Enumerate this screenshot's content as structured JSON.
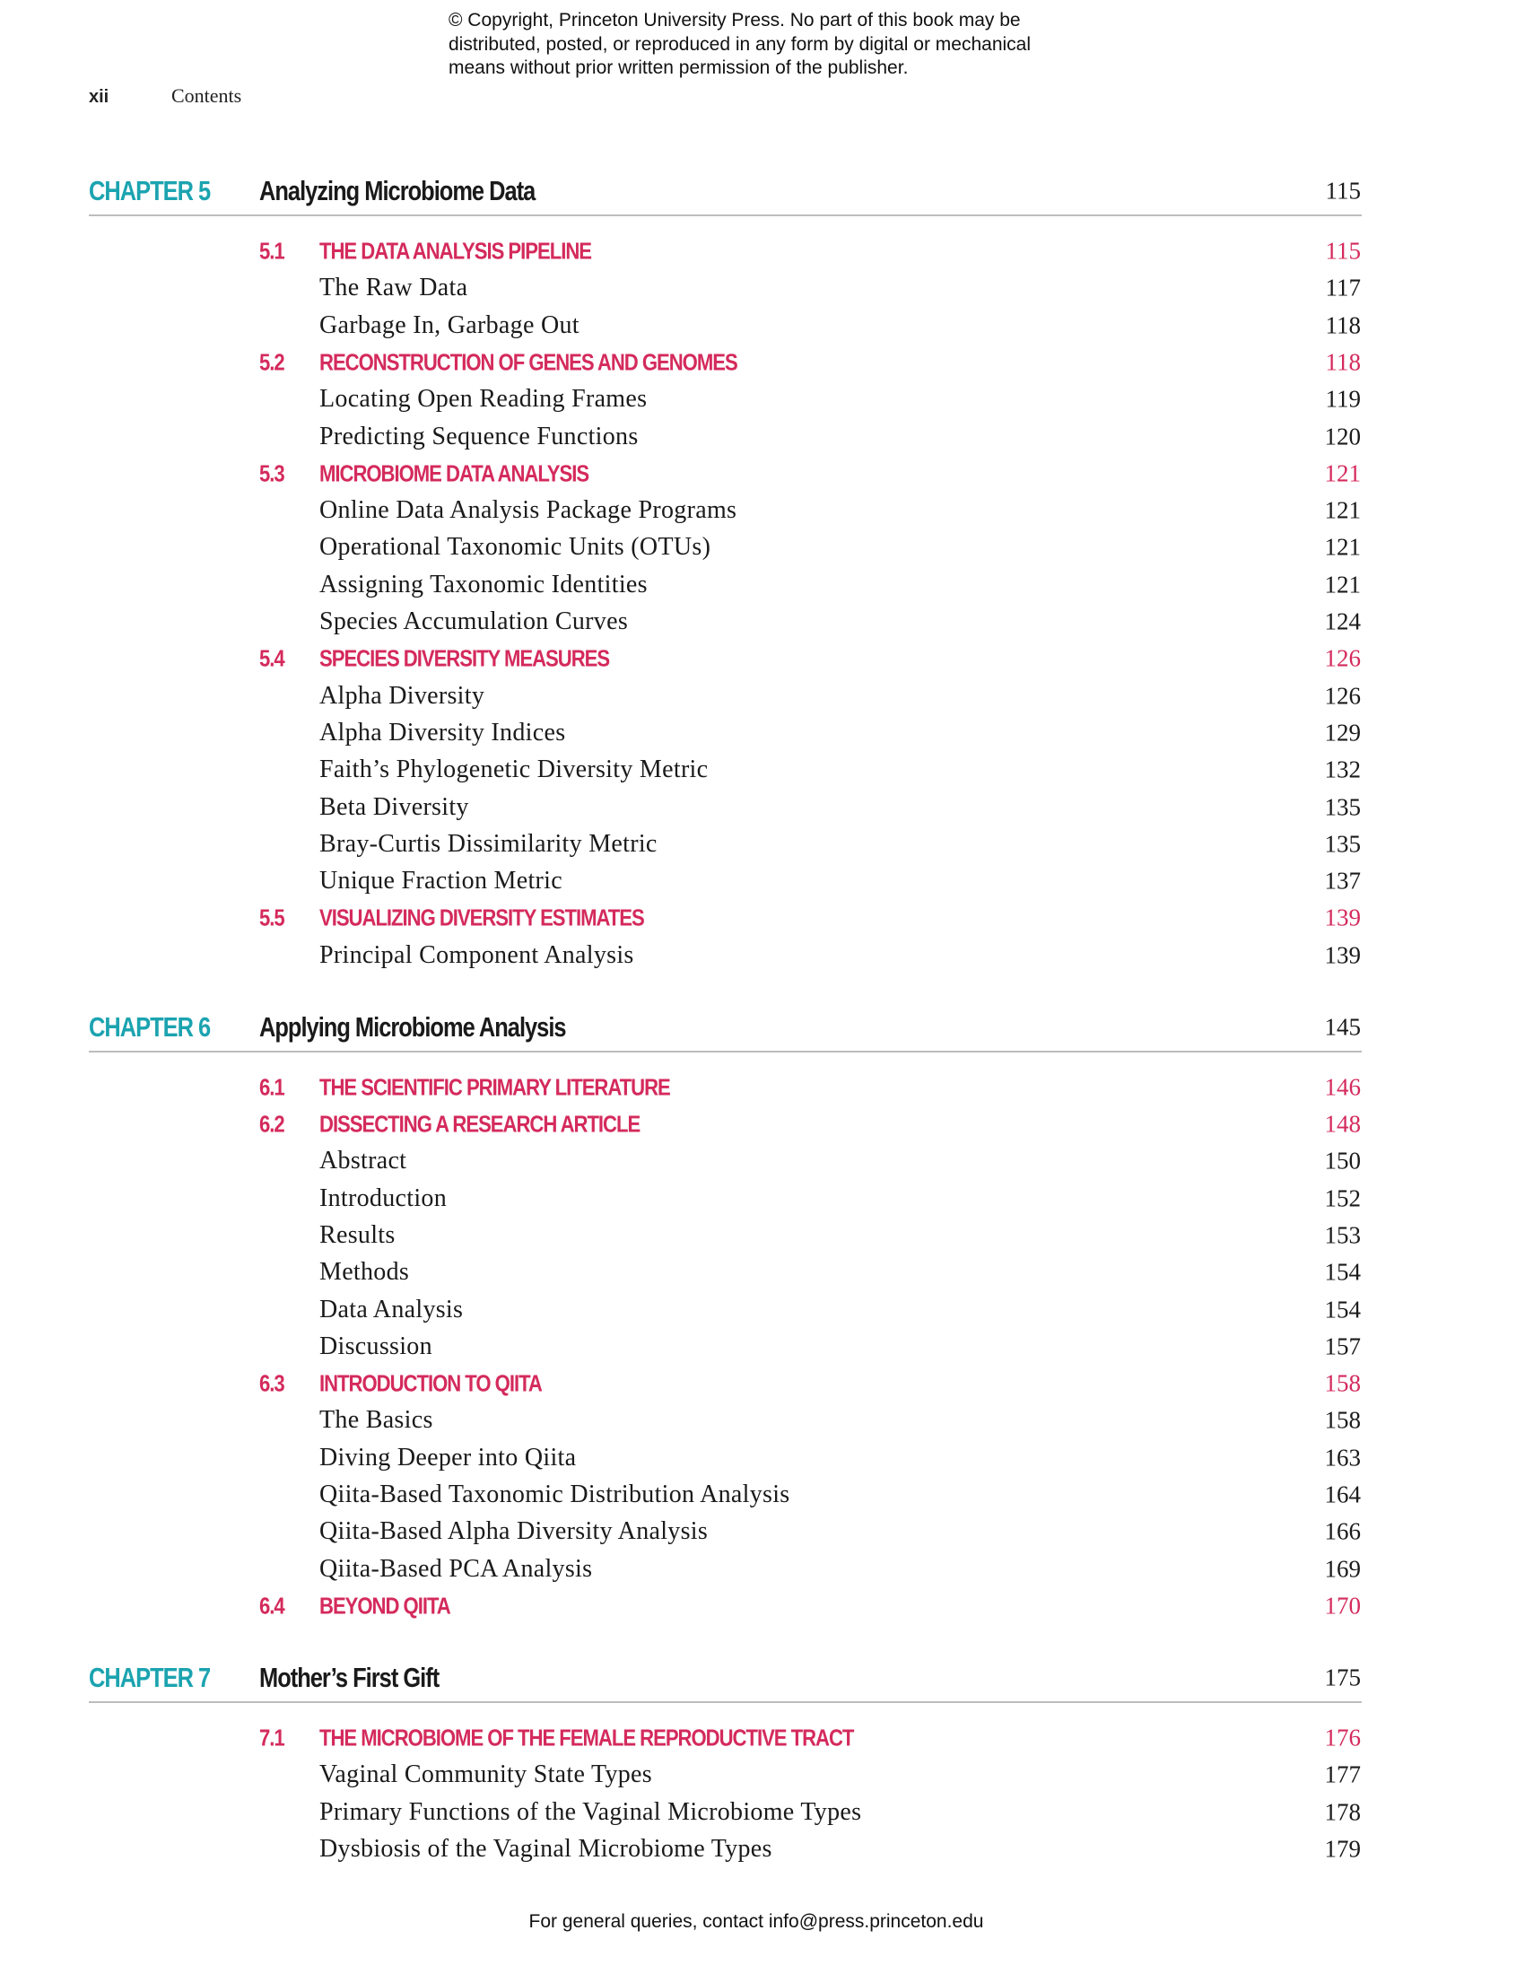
{
  "copyright": [
    "© Copyright, Princeton University Press. No part of this book may be",
    "distributed, posted, or reproduced in any form by digital or mechanical",
    "means without prior written permission of the publisher."
  ],
  "running_head": {
    "folio": "xii",
    "title": "Contents"
  },
  "colors": {
    "chapter_label": "#1ba3b0",
    "section": "#d42a5c",
    "text": "#1a1a1a",
    "rule": "#bdbdbd"
  },
  "chapters": [
    {
      "label": "CHAPTER 5",
      "title": "Analyzing Microbiome Data",
      "page": "115",
      "entries": [
        {
          "type": "section",
          "num": "5.1",
          "title": "THE DATA ANALYSIS PIPELINE",
          "page": "115"
        },
        {
          "type": "sub",
          "title": "The Raw Data",
          "page": "117"
        },
        {
          "type": "sub",
          "title": "Garbage In, Garbage Out",
          "page": "118"
        },
        {
          "type": "section",
          "num": "5.2",
          "title": "RECONSTRUCTION OF GENES AND GENOMES",
          "page": "118"
        },
        {
          "type": "sub",
          "title": "Locating Open Reading Frames",
          "page": "119"
        },
        {
          "type": "sub",
          "title": "Predicting Sequence Functions",
          "page": "120"
        },
        {
          "type": "section",
          "num": "5.3",
          "title": "MICROBIOME DATA ANALYSIS",
          "page": "121"
        },
        {
          "type": "sub",
          "title": "Online Data Analysis Package Programs",
          "page": "121"
        },
        {
          "type": "sub",
          "title": "Operational Taxonomic Units (OTUs)",
          "page": "121"
        },
        {
          "type": "sub",
          "title": "Assigning Taxonomic Identities",
          "page": "121"
        },
        {
          "type": "sub",
          "title": "Species Accumulation Curves",
          "page": "124"
        },
        {
          "type": "section",
          "num": "5.4",
          "title": "SPECIES DIVERSITY MEASURES",
          "page": "126"
        },
        {
          "type": "sub",
          "title": "Alpha Diversity",
          "page": "126"
        },
        {
          "type": "sub",
          "title": "Alpha Diversity Indices",
          "page": "129"
        },
        {
          "type": "sub",
          "title": "Faith’s Phylogenetic Diversity Metric",
          "page": "132"
        },
        {
          "type": "sub",
          "title": "Beta Diversity",
          "page": "135"
        },
        {
          "type": "sub",
          "title": "Bray-Curtis Dissimilarity Metric",
          "page": "135"
        },
        {
          "type": "sub",
          "title": "Unique Fraction Metric",
          "page": "137"
        },
        {
          "type": "section",
          "num": "5.5",
          "title": "VISUALIZING DIVERSITY ESTIMATES",
          "page": "139"
        },
        {
          "type": "sub",
          "title": "Principal Component Analysis",
          "page": "139"
        }
      ]
    },
    {
      "label": "CHAPTER 6",
      "title": "Applying Microbiome Analysis",
      "page": "145",
      "entries": [
        {
          "type": "section",
          "num": "6.1",
          "title": "THE SCIENTIFIC PRIMARY LITERATURE",
          "page": "146"
        },
        {
          "type": "section",
          "num": "6.2",
          "title": "DISSECTING A RESEARCH ARTICLE",
          "page": "148"
        },
        {
          "type": "sub",
          "title": "Abstract",
          "page": "150"
        },
        {
          "type": "sub",
          "title": "Introduction",
          "page": "152"
        },
        {
          "type": "sub",
          "title": "Results",
          "page": "153"
        },
        {
          "type": "sub",
          "title": "Methods",
          "page": "154"
        },
        {
          "type": "sub",
          "title": "Data Analysis",
          "page": "154"
        },
        {
          "type": "sub",
          "title": "Discussion",
          "page": "157"
        },
        {
          "type": "section",
          "num": "6.3",
          "title": "INTRODUCTION TO QIITA",
          "page": "158"
        },
        {
          "type": "sub",
          "title": "The Basics",
          "page": "158"
        },
        {
          "type": "sub",
          "title": "Diving Deeper into Qiita",
          "page": "163"
        },
        {
          "type": "sub",
          "title": "Qiita-Based Taxonomic Distribution Analysis",
          "page": "164"
        },
        {
          "type": "sub",
          "title": "Qiita-Based Alpha Diversity Analysis",
          "page": "166"
        },
        {
          "type": "sub",
          "title": "Qiita-Based PCA Analysis",
          "page": "169"
        },
        {
          "type": "section",
          "num": "6.4",
          "title": "BEYOND QIITA",
          "page": "170"
        }
      ]
    },
    {
      "label": "CHAPTER 7",
      "title": "Mother’s First Gift",
      "page": "175",
      "entries": [
        {
          "type": "section",
          "num": "7.1",
          "title": "THE MICROBIOME OF THE FEMALE REPRODUCTIVE TRACT",
          "page": "176"
        },
        {
          "type": "sub",
          "title": "Vaginal Community State Types",
          "page": "177"
        },
        {
          "type": "sub",
          "title": "Primary Functions of the Vaginal Microbiome Types",
          "page": "178"
        },
        {
          "type": "sub",
          "title": "Dysbiosis of the Vaginal Microbiome Types",
          "page": "179"
        }
      ]
    }
  ],
  "footer": "For general queries, contact info@press.princeton.edu"
}
